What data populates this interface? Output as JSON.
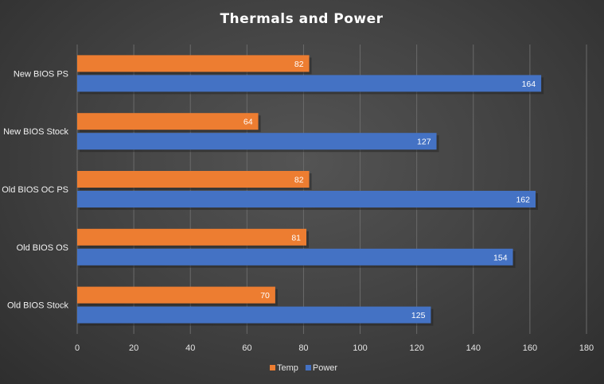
{
  "chart_data": {
    "type": "bar",
    "orientation": "horizontal",
    "title": "Thermals and Power",
    "xlabel": "",
    "ylabel": "",
    "categories": [
      "New BIOS PS",
      "New BIOS Stock",
      "Old BIOS OC PS",
      "Old BIOS OS",
      "Old BIOS Stock"
    ],
    "series": [
      {
        "name": "Temp",
        "color": "#ed7d31",
        "values": [
          82,
          64,
          82,
          81,
          70
        ]
      },
      {
        "name": "Power",
        "color": "#4472c4",
        "values": [
          164,
          127,
          162,
          154,
          125
        ]
      }
    ],
    "xlim": [
      0,
      180
    ],
    "xticks": [
      0,
      20,
      40,
      60,
      80,
      100,
      120,
      140,
      160,
      180
    ],
    "grid": true,
    "data_labels": true,
    "legend_position": "bottom"
  }
}
